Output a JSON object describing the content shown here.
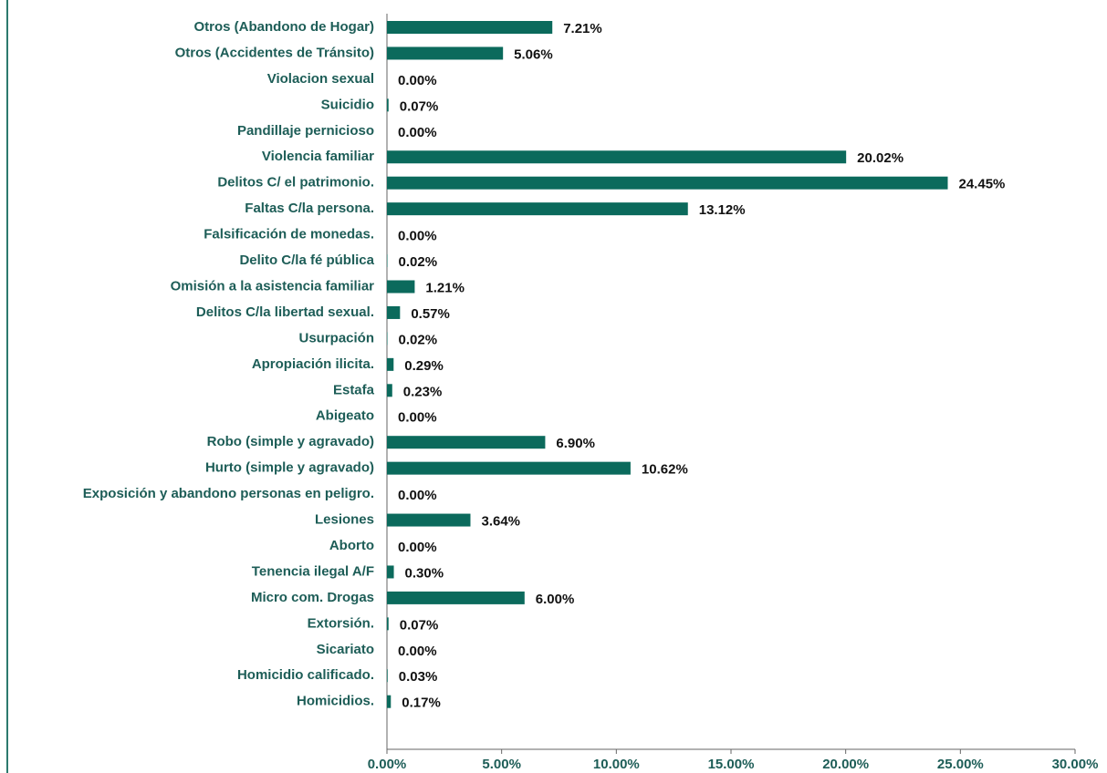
{
  "chart_data": {
    "type": "barh",
    "categories": [
      "Otros (Abandono de Hogar)",
      "Otros (Accidentes de Tránsito)",
      "Violacion sexual",
      "Suicidio",
      "Pandillaje pernicioso",
      "Violencia familiar",
      "Delitos C/ el patrimonio.",
      "Faltas C/la persona.",
      "Falsificación de monedas.",
      "Delito C/la fé pública",
      "Omisión a la asistencia familiar",
      "Delitos C/la libertad sexual.",
      "Usurpación",
      "Apropiación ilicita.",
      "Estafa",
      "Abigeato",
      "Robo (simple y agravado)",
      "Hurto (simple y agravado)",
      "Exposición y abandono personas en peligro.",
      "Lesiones",
      "Aborto",
      "Tenencia ilegal A/F",
      "Micro com. Drogas",
      "Extorsión.",
      "Sicariato",
      "Homicidio calificado.",
      "Homicidios."
    ],
    "values": [
      7.21,
      5.06,
      0,
      0.07,
      0,
      20.02,
      24.45,
      13.12,
      0,
      0.02,
      1.21,
      0.57,
      0.02,
      0.29,
      0.23,
      0,
      6.9,
      10.62,
      0,
      3.64,
      0,
      0.3,
      6,
      0.07,
      0,
      0.03,
      0.17
    ],
    "value_labels": [
      "7.21%",
      "5.06%",
      "0.00%",
      "0.07%",
      "0.00%",
      "20.02%",
      "24.45%",
      "13.12%",
      "0.00%",
      "0.02%",
      "1.21%",
      "0.57%",
      "0.02%",
      "0.29%",
      "0.23%",
      "0.00%",
      "6.90%",
      "10.62%",
      "0.00%",
      "3.64%",
      "0.00%",
      "0.30%",
      "6.00%",
      "0.07%",
      "0.00%",
      "0.03%",
      "0.17%"
    ],
    "color": "#0b6a5c",
    "xlim": [
      0,
      30
    ],
    "xticks": [
      {
        "value": 0,
        "label": "0.00%"
      },
      {
        "value": 5,
        "label": "5.00%"
      },
      {
        "value": 10,
        "label": "10.00%"
      },
      {
        "value": 15,
        "label": "15.00%"
      },
      {
        "value": 20,
        "label": "20.00%"
      },
      {
        "value": 25,
        "label": "25.00%"
      },
      {
        "value": 30,
        "label": "30.00%"
      }
    ]
  }
}
